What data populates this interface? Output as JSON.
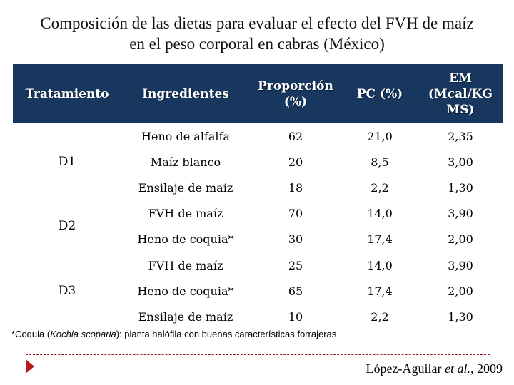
{
  "title": {
    "line1": "Composición de las dietas para evaluar el efecto del FVH de maíz",
    "line2": "en el peso corporal en cabras (México)"
  },
  "table": {
    "headers": {
      "tratamiento": "Tratamiento",
      "ingredientes": "Ingredientes",
      "proporcion": "Proporción (%)",
      "pc": "PC (%)",
      "em": "EM (Mcal/KG MS)"
    },
    "groups": [
      {
        "label": "D1",
        "rows": [
          {
            "ingrediente": "Heno de alfalfa",
            "proporcion": "62",
            "pc": "21,0",
            "em": "2,35"
          },
          {
            "ingrediente": "Maíz blanco",
            "proporcion": "20",
            "pc": "8,5",
            "em": "3,00"
          },
          {
            "ingrediente": "Ensilaje de maíz",
            "proporcion": "18",
            "pc": "2,2",
            "em": "1,30"
          }
        ]
      },
      {
        "label": "D2",
        "rows": [
          {
            "ingrediente": "FVH de maíz",
            "proporcion": "70",
            "pc": "14,0",
            "em": "3,90"
          },
          {
            "ingrediente": "Heno de coquia*",
            "proporcion": "30",
            "pc": "17,4",
            "em": "2,00"
          }
        ]
      },
      {
        "label": "D3",
        "rows": [
          {
            "ingrediente": "FVH de maíz",
            "proporcion": "25",
            "pc": "14,0",
            "em": "3,90"
          },
          {
            "ingrediente": "Heno de coquia*",
            "proporcion": "65",
            "pc": "17,4",
            "em": "2,00"
          },
          {
            "ingrediente": "Ensilaje de maíz",
            "proporcion": "10",
            "pc": "2,2",
            "em": "1,30"
          }
        ]
      }
    ]
  },
  "footnote": {
    "prefix": "*Coquia (",
    "species": "Kochia scoparia",
    "suffix": "): planta halófila con buenas características forrajeras"
  },
  "citation": {
    "authors": "López-Aguilar ",
    "etal": "et al.",
    "year": ", 2009"
  },
  "colors": {
    "header_bg": "#17375e",
    "arrow": "#b81818"
  }
}
